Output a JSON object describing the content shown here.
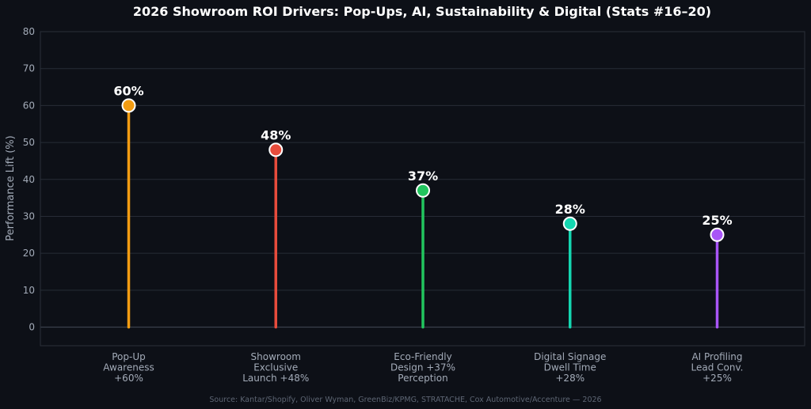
{
  "chart_data": {
    "type": "lollipop",
    "title": "2026 Showroom ROI Drivers: Pop-Ups, AI, Sustainability & Digital (Stats #16–20)",
    "ylabel": "Performance Lift (%)",
    "ylim": [
      -5,
      80
    ],
    "yticks": [
      0,
      10,
      20,
      30,
      40,
      50,
      60,
      70,
      80
    ],
    "grid": true,
    "categories": [
      [
        "Pop-Up",
        "Awareness",
        "+60%"
      ],
      [
        "Showroom",
        "Exclusive",
        "Launch +48%"
      ],
      [
        "Eco-Friendly",
        "Design +37%",
        "Perception"
      ],
      [
        "Digital Signage",
        "Dwell Time",
        "+28%"
      ],
      [
        "AI Profiling",
        "Lead Conv.",
        "+25%"
      ]
    ],
    "values": [
      60,
      48,
      37,
      28,
      25
    ],
    "data_labels": [
      "60%",
      "48%",
      "37%",
      "28%",
      "25%"
    ],
    "colors": [
      "#f39c12",
      "#e74c3c",
      "#22c55e",
      "#14d6b0",
      "#a855f7"
    ],
    "source": "Source: Kantar/Shopify, Oliver Wyman, GreenBiz/KPMG, STRATACHE, Cox Automotive/Accenture — 2026"
  }
}
